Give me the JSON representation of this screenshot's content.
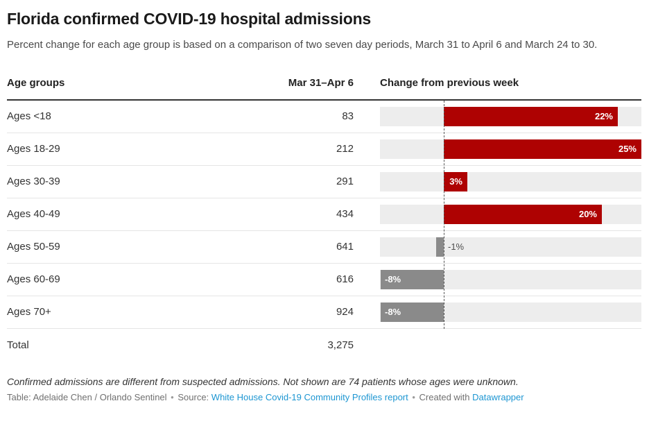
{
  "header": {
    "title": "Florida confirmed COVID-19 hospital admissions",
    "subtitle": "Percent change for each age group is based on a comparison of two seven day periods, March 31 to April 6 and March 24 to 30."
  },
  "table": {
    "col_age": "Age groups",
    "col_period": "Mar 31–Apr 6",
    "col_change": "Change from previous week"
  },
  "chart_data": {
    "type": "bar",
    "title": "Florida confirmed COVID-19 hospital admissions",
    "subtitle": "Percent change for each age group is based on a comparison of two seven day periods, March 31 to April 6 and March 24 to 30.",
    "columns": [
      "Age groups",
      "Mar 31–Apr 6",
      "Change from previous week"
    ],
    "categories": [
      "Ages <18",
      "Ages 18-29",
      "Ages 30-39",
      "Ages 40-49",
      "Ages 50-59",
      "Ages 60-69",
      "Ages 70+"
    ],
    "admissions": [
      83,
      212,
      291,
      434,
      641,
      616,
      924
    ],
    "change_percent": [
      22,
      25,
      3,
      20,
      -1,
      -8,
      -8
    ],
    "rows": [
      {
        "label": "Ages <18",
        "value": "83",
        "change": 22,
        "change_label": "22%"
      },
      {
        "label": "Ages 18-29",
        "value": "212",
        "change": 25,
        "change_label": "25%"
      },
      {
        "label": "Ages 30-39",
        "value": "291",
        "change": 3,
        "change_label": "3%"
      },
      {
        "label": "Ages 40-49",
        "value": "434",
        "change": 20,
        "change_label": "20%"
      },
      {
        "label": "Ages 50-59",
        "value": "641",
        "change": -1,
        "change_label": "-1%"
      },
      {
        "label": "Ages 60-69",
        "value": "616",
        "change": -8,
        "change_label": "-8%"
      },
      {
        "label": "Ages 70+",
        "value": "924",
        "change": -8,
        "change_label": "-8%"
      }
    ],
    "total_label": "Total",
    "total_value": "3,275",
    "xlim": [
      -8.07,
      25
    ],
    "grid": false,
    "legend": "none",
    "colors": {
      "positive_bar": "#ae0202",
      "negative_bar": "#8a8a8a",
      "track": "#ededed",
      "baseline": "#555555"
    }
  },
  "footer": {
    "note": "Confirmed admissions are different from suspected admissions. Not shown are 74 patients whose ages were unknown.",
    "credit_prefix": "Table: Adelaide Chen / Orlando Sentinel",
    "separator": "•",
    "source_label": "Source:",
    "source_link_text": "White House Covid-19 Community Profiles report",
    "created_label": "Created with",
    "created_link_text": "Datawrapper"
  }
}
